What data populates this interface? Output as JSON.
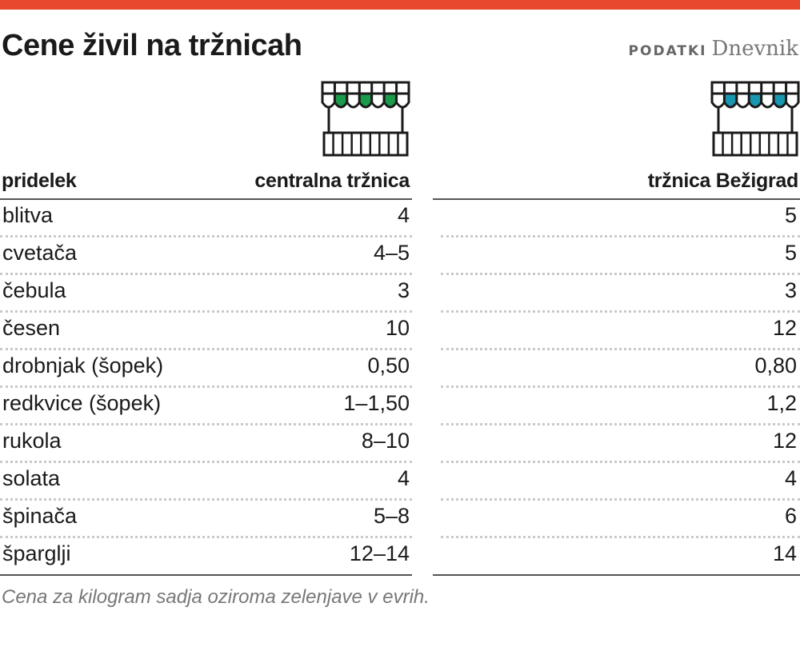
{
  "header": {
    "title": "Cene živil na tržnicah",
    "source_label": "PODATKI",
    "source_brand": "Dnevnik"
  },
  "colors": {
    "accent_bar": "#e8492c",
    "central_awning": "#1a9a4a",
    "bezigrad_awning": "#1a97b0"
  },
  "icons": {
    "central": "market-stall-icon",
    "bezigrad": "market-stall-icon"
  },
  "chart_data": {
    "type": "table",
    "columns": [
      "pridelek",
      "centralna tržnica",
      "tržnica Bežigrad"
    ],
    "rows": [
      {
        "pridelek": "blitva",
        "central": "4",
        "bezigrad": "5"
      },
      {
        "pridelek": "cvetača",
        "central": "4–5",
        "bezigrad": "5"
      },
      {
        "pridelek": "čebula",
        "central": "3",
        "bezigrad": "3"
      },
      {
        "pridelek": "česen",
        "central": "10",
        "bezigrad": "12"
      },
      {
        "pridelek": "drobnjak (šopek)",
        "central": "0,50",
        "bezigrad": "0,80"
      },
      {
        "pridelek": "redkvice (šopek)",
        "central": "1–1,50",
        "bezigrad": "1,2"
      },
      {
        "pridelek": "rukola",
        "central": "8–10",
        "bezigrad": "12"
      },
      {
        "pridelek": "solata",
        "central": "4",
        "bezigrad": "4"
      },
      {
        "pridelek": "špinača",
        "central": "5–8",
        "bezigrad": "6"
      },
      {
        "pridelek": "šparglji",
        "central": "12–14",
        "bezigrad": "14"
      }
    ],
    "note": "Cena za kilogram sadja oziroma zelenjave v evrih."
  }
}
